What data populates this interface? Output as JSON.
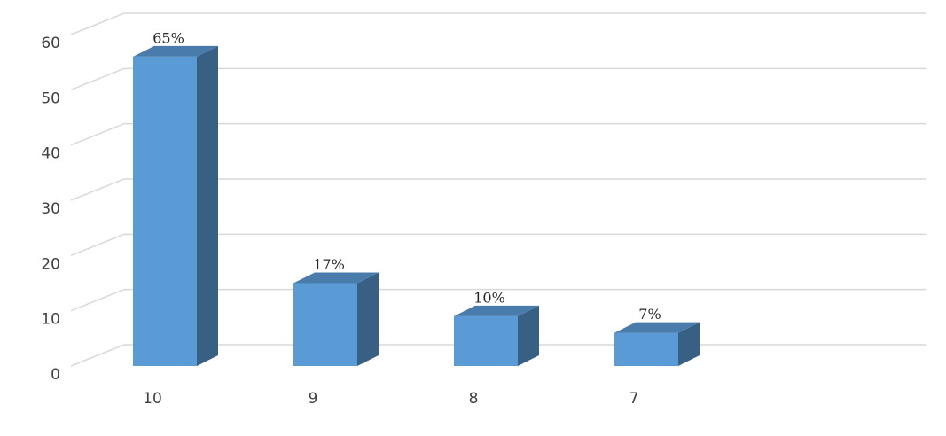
{
  "chart_data": {
    "type": "bar3d",
    "categories": [
      "10",
      "9",
      "8",
      "7",
      null
    ],
    "values": [
      56,
      15,
      9,
      6,
      null
    ],
    "data_labels": [
      "65%",
      "17%",
      "10%",
      "7%",
      null
    ],
    "color": "#5b9bd5",
    "ylim": [
      0,
      60
    ],
    "yticks": [
      0,
      10,
      20,
      30,
      40,
      50,
      60
    ],
    "grid": true
  }
}
